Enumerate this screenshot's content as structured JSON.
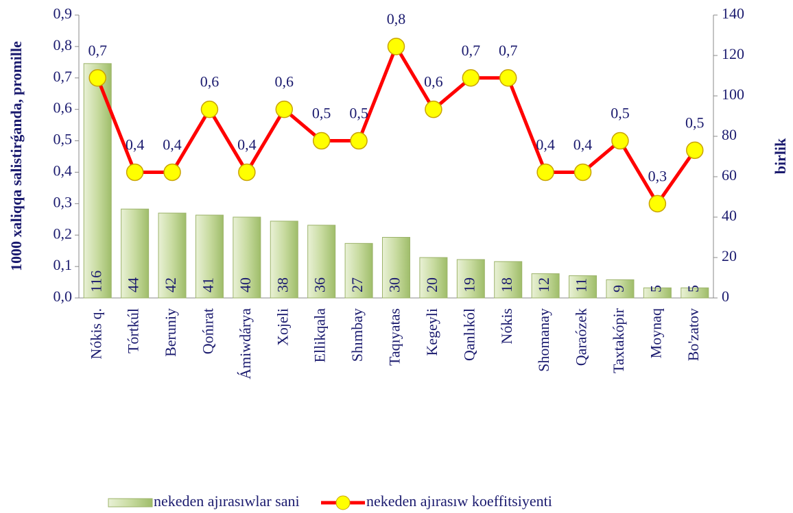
{
  "chart_data": {
    "type": "bar",
    "y_label": "1000 xaliqqa salistirǵanda, promille",
    "y2_label": "birlik",
    "categories": [
      "Nókis q.",
      "Tórtkúl",
      "Beruniy",
      "Qońırat",
      "Ámiwdárya",
      "Xojeli",
      "Ellikqala",
      "Shımbay",
      "Taqıyatas",
      "Kegeyli",
      "Qanlıkól",
      "Nókis",
      "Shomanay",
      "Qaraózek",
      "Taxtakópir",
      "Moynaq",
      "Bo'zatov"
    ],
    "series": [
      {
        "name": "nekeden ajırasıwlar sani",
        "type": "bar",
        "axis": "y2",
        "color": "#c8dba0",
        "values": [
          116,
          44,
          42,
          41,
          40,
          38,
          36,
          27,
          30,
          20,
          19,
          18,
          12,
          11,
          9,
          5,
          5
        ]
      },
      {
        "name": "nekeden ajırasıw koeffitsiyenti",
        "type": "line",
        "axis": "y",
        "color": "#ff0000",
        "marker_color": "#ffff00",
        "values": [
          0.7,
          0.4,
          0.4,
          0.6,
          0.4,
          0.6,
          0.5,
          0.5,
          0.8,
          0.6,
          0.7,
          0.7,
          0.4,
          0.4,
          0.5,
          0.3,
          0.47
        ],
        "value_labels": [
          "0,7",
          "0,4",
          "0,4",
          "0,6",
          "0,4",
          "0,6",
          "0,5",
          "0,5",
          "0,8",
          "0,6",
          "0,7",
          "0,7",
          "0,4",
          "0,4",
          "0,5",
          "0,3",
          "0,5"
        ]
      }
    ],
    "ylim": [
      0,
      0.9
    ],
    "yticks": [
      {
        "value": 0,
        "label": "0,0"
      },
      {
        "value": 0.1,
        "label": "0,1"
      },
      {
        "value": 0.2,
        "label": "0,2"
      },
      {
        "value": 0.3,
        "label": "0,3"
      },
      {
        "value": 0.4,
        "label": "0,4"
      },
      {
        "value": 0.5,
        "label": "0,5"
      },
      {
        "value": 0.6,
        "label": "0,6"
      },
      {
        "value": 0.7,
        "label": "0,7"
      },
      {
        "value": 0.8,
        "label": "0,8"
      },
      {
        "value": 0.9,
        "label": "0,9"
      }
    ],
    "y2lim": [
      0,
      140
    ],
    "y2ticks": [
      0,
      20,
      40,
      60,
      80,
      100,
      120,
      140
    ],
    "legend": "bottom"
  }
}
